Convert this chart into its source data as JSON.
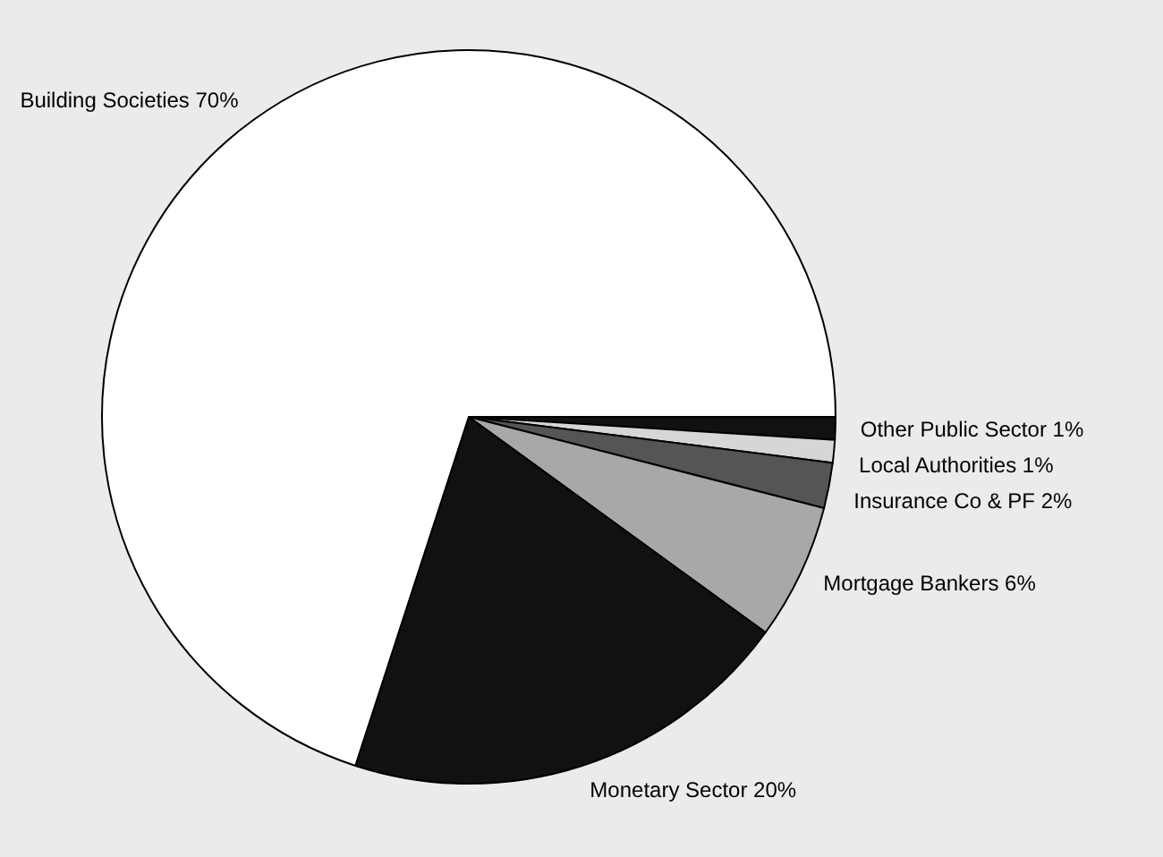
{
  "chart_data": {
    "type": "pie",
    "categories": [
      "Other Public Sector",
      "Local Authorities",
      "Insurance Co & PF",
      "Mortgage Bankers",
      "Monetary Sector",
      "Building Societies"
    ],
    "values": [
      1,
      1,
      2,
      6,
      20,
      70
    ],
    "value_labels": [
      "1%",
      "1%",
      "2%",
      "6%",
      "20%",
      "70%"
    ],
    "colors": [
      "#111111",
      "#d6d6d6",
      "#555555",
      "#a8a8a8",
      "#111111",
      "#ffffff"
    ]
  }
}
